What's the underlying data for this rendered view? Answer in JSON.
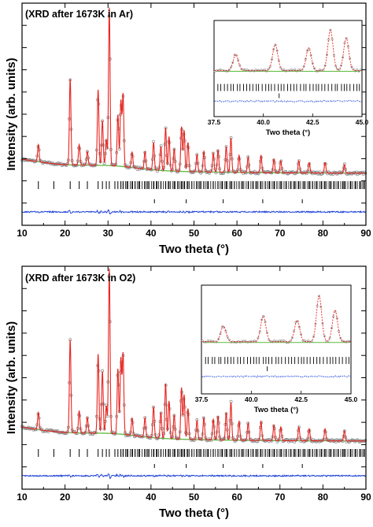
{
  "chart_data": [
    {
      "type": "line",
      "label": "(XRD after 1673K in Ar)",
      "xlabel": "Two theta (°)",
      "ylabel": "Intensity (arb. units)",
      "xlim": [
        10,
        90
      ],
      "xticks": [
        "10",
        "20",
        "30",
        "40",
        "50",
        "60",
        "70",
        "80",
        "90"
      ],
      "grid": false,
      "peaks": [
        {
          "x": 13.8,
          "y": 0.1
        },
        {
          "x": 21.2,
          "y": 0.5
        },
        {
          "x": 23.3,
          "y": 0.12
        },
        {
          "x": 25.2,
          "y": 0.08
        },
        {
          "x": 27.7,
          "y": 0.44
        },
        {
          "x": 28.7,
          "y": 0.26
        },
        {
          "x": 29.6,
          "y": 0.15
        },
        {
          "x": 30.3,
          "y": 0.92
        },
        {
          "x": 32.3,
          "y": 0.3
        },
        {
          "x": 33.0,
          "y": 0.38
        },
        {
          "x": 33.5,
          "y": 0.42
        },
        {
          "x": 35.6,
          "y": 0.09
        },
        {
          "x": 38.6,
          "y": 0.1
        },
        {
          "x": 40.6,
          "y": 0.16
        },
        {
          "x": 42.3,
          "y": 0.14
        },
        {
          "x": 43.4,
          "y": 0.25
        },
        {
          "x": 44.2,
          "y": 0.2
        },
        {
          "x": 45.4,
          "y": 0.13
        },
        {
          "x": 47.1,
          "y": 0.26
        },
        {
          "x": 47.7,
          "y": 0.24
        },
        {
          "x": 48.6,
          "y": 0.17
        },
        {
          "x": 50.7,
          "y": 0.1
        },
        {
          "x": 52.3,
          "y": 0.12
        },
        {
          "x": 54.5,
          "y": 0.11
        },
        {
          "x": 55.6,
          "y": 0.13
        },
        {
          "x": 57.5,
          "y": 0.15
        },
        {
          "x": 58.6,
          "y": 0.2
        },
        {
          "x": 60.5,
          "y": 0.1
        },
        {
          "x": 62.6,
          "y": 0.09
        },
        {
          "x": 65.6,
          "y": 0.1
        },
        {
          "x": 68.6,
          "y": 0.08
        },
        {
          "x": 70.2,
          "y": 0.07
        },
        {
          "x": 74.4,
          "y": 0.07
        },
        {
          "x": 76.8,
          "y": 0.06
        },
        {
          "x": 80.5,
          "y": 0.06
        },
        {
          "x": 85.0,
          "y": 0.05
        }
      ],
      "reflections": [
        13.8,
        17.4,
        21.2,
        23.3,
        25.2,
        27.7,
        28.7,
        29.6,
        30.3,
        31.6,
        32.3,
        33.0,
        33.5,
        34.4,
        35.6,
        36.3,
        37.2,
        38.6,
        39.3,
        40.6,
        41.4,
        42.3,
        43.4,
        44.2,
        45.4,
        46.3,
        47.1,
        47.7,
        48.6,
        49.5,
        50.7,
        51.4,
        52.3,
        53.2,
        54.5,
        55.6,
        56.5,
        57.5,
        58.6,
        59.4,
        60.5,
        61.3,
        62.6,
        63.7,
        64.6,
        65.6,
        66.6,
        67.5,
        68.6,
        69.3,
        70.2,
        71.4,
        72.5,
        73.4,
        74.4,
        75.6,
        76.8,
        77.6,
        78.5,
        79.6,
        80.5,
        81.7,
        82.6,
        83.5,
        84.6,
        85.0,
        86.5,
        87.6,
        88.7,
        89.5
      ],
      "second_phase_reflections": [
        40.8,
        48.2,
        56.8,
        66.0,
        75.2
      ],
      "inset": {
        "xlabel": "Two theta (°)",
        "xlim": [
          37.5,
          45
        ],
        "xticks": [
          "37.5",
          "40.0",
          "42.5",
          "45.0"
        ]
      }
    },
    {
      "type": "line",
      "label": "(XRD after 1673K in O2)",
      "xlabel": "Two theta (°)",
      "ylabel": "Intensity (arb. units)",
      "xlim": [
        10,
        90
      ],
      "xticks": [
        "10",
        "20",
        "30",
        "40",
        "50",
        "60",
        "70",
        "80",
        "90"
      ],
      "grid": false,
      "peaks": [
        {
          "x": 13.8,
          "y": 0.1
        },
        {
          "x": 21.2,
          "y": 0.54
        },
        {
          "x": 23.3,
          "y": 0.13
        },
        {
          "x": 25.2,
          "y": 0.09
        },
        {
          "x": 27.7,
          "y": 0.46
        },
        {
          "x": 28.7,
          "y": 0.36
        },
        {
          "x": 29.6,
          "y": 0.16
        },
        {
          "x": 30.3,
          "y": 0.96
        },
        {
          "x": 32.3,
          "y": 0.38
        },
        {
          "x": 33.0,
          "y": 0.44
        },
        {
          "x": 33.5,
          "y": 0.47
        },
        {
          "x": 35.6,
          "y": 0.1
        },
        {
          "x": 38.6,
          "y": 0.11
        },
        {
          "x": 40.6,
          "y": 0.18
        },
        {
          "x": 42.3,
          "y": 0.15
        },
        {
          "x": 43.4,
          "y": 0.32
        },
        {
          "x": 44.2,
          "y": 0.22
        },
        {
          "x": 45.4,
          "y": 0.14
        },
        {
          "x": 47.1,
          "y": 0.3
        },
        {
          "x": 47.7,
          "y": 0.26
        },
        {
          "x": 48.6,
          "y": 0.18
        },
        {
          "x": 50.7,
          "y": 0.11
        },
        {
          "x": 52.3,
          "y": 0.13
        },
        {
          "x": 54.5,
          "y": 0.12
        },
        {
          "x": 55.6,
          "y": 0.14
        },
        {
          "x": 57.5,
          "y": 0.16
        },
        {
          "x": 58.6,
          "y": 0.22
        },
        {
          "x": 60.5,
          "y": 0.11
        },
        {
          "x": 62.6,
          "y": 0.1
        },
        {
          "x": 65.6,
          "y": 0.11
        },
        {
          "x": 68.6,
          "y": 0.09
        },
        {
          "x": 70.2,
          "y": 0.08
        },
        {
          "x": 74.4,
          "y": 0.08
        },
        {
          "x": 76.8,
          "y": 0.07
        },
        {
          "x": 80.5,
          "y": 0.07
        },
        {
          "x": 85.0,
          "y": 0.06
        }
      ],
      "reflections": [
        13.8,
        17.4,
        21.2,
        23.3,
        25.2,
        27.7,
        28.7,
        29.6,
        30.3,
        31.6,
        32.3,
        33.0,
        33.5,
        34.4,
        35.6,
        36.3,
        37.2,
        38.6,
        39.3,
        40.6,
        41.4,
        42.3,
        43.4,
        44.2,
        45.4,
        46.3,
        47.1,
        47.7,
        48.6,
        49.5,
        50.7,
        51.4,
        52.3,
        53.2,
        54.5,
        55.6,
        56.5,
        57.5,
        58.6,
        59.4,
        60.5,
        61.3,
        62.6,
        63.7,
        64.6,
        65.6,
        66.6,
        67.5,
        68.6,
        69.3,
        70.2,
        71.4,
        72.5,
        73.4,
        74.4,
        75.6,
        76.8,
        77.6,
        78.5,
        79.6,
        80.5,
        81.7,
        82.6,
        83.5,
        84.6,
        85.0,
        86.5,
        87.6,
        88.7,
        89.5
      ],
      "second_phase_reflections": [
        40.8,
        48.2,
        56.8,
        66.0,
        75.2
      ],
      "inset": {
        "xlabel": "Two theta (°)",
        "xlim": [
          37.5,
          45
        ],
        "xticks": [
          "37.5",
          "40.0",
          "42.5",
          "45.0"
        ]
      }
    }
  ],
  "colors": {
    "observed": "#8a8a8a",
    "calculated": "#e8231e",
    "background": "#5dbb3a",
    "difference": "#2346d8",
    "ticks": "#000000"
  }
}
